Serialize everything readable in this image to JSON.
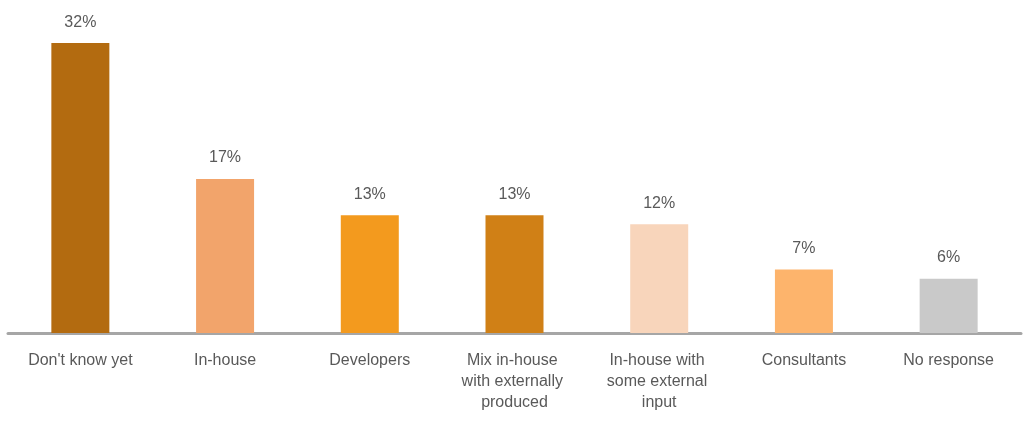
{
  "chart_data": {
    "type": "bar",
    "categories": [
      "Don't know yet",
      "In-house",
      "Developers",
      "Mix in-house with externally produced",
      "In-house with some external input",
      "Consultants",
      "No response"
    ],
    "values": [
      32,
      17,
      13,
      13,
      12,
      7,
      6
    ],
    "colors": [
      "#b36b10",
      "#f2a46b",
      "#f39a1e",
      "#d08016",
      "#f8d5bb",
      "#fdb46c",
      "#c9c9c9"
    ],
    "value_labels": [
      "32%",
      "17%",
      "13%",
      "13%",
      "12%",
      "7%",
      "6%"
    ],
    "grid": false
  }
}
